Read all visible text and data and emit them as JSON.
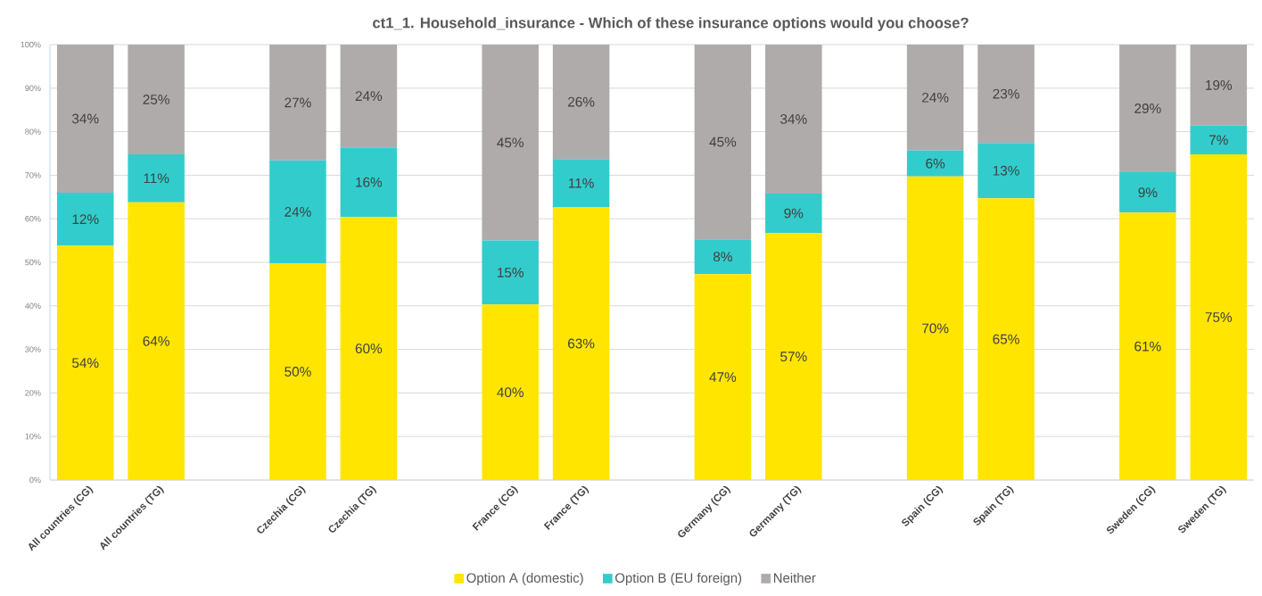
{
  "chart_data": {
    "type": "bar",
    "title": "ct1_1. Household_insurance - Which of these insurance options would you choose?",
    "categories": [
      "All countries (CG)",
      "All countries (TG)",
      null,
      "Czechia (CG)",
      "Czechia (TG)",
      null,
      "France (CG)",
      "France (TG)",
      null,
      "Germany (CG)",
      "Germany (TG)",
      null,
      "Spain (CG)",
      "Spain (TG)",
      null,
      "Sweden (CG)",
      "Sweden (TG)"
    ],
    "stacked": true,
    "series": [
      {
        "name": "Option A  (domestic)",
        "color": "#ffe500",
        "values": [
          53.8,
          63.8,
          null,
          49.8,
          60.4,
          null,
          40.3,
          62.7,
          null,
          47.3,
          56.7,
          null,
          69.7,
          64.7,
          null,
          61.4,
          74.8
        ],
        "value_labels": [
          "54%",
          "64%",
          null,
          "50%",
          "60%",
          null,
          "40%",
          "63%",
          null,
          "47%",
          "57%",
          null,
          "70%",
          "65%",
          null,
          "61%",
          "75%"
        ]
      },
      {
        "name": "Option B  (EU foreign)",
        "color": "#33cccc",
        "values": [
          12.2,
          11.0,
          null,
          23.6,
          16.0,
          null,
          14.7,
          11.0,
          null,
          8.0,
          9.1,
          null,
          6.0,
          12.7,
          null,
          9.3,
          6.6
        ],
        "value_labels": [
          "12%",
          "11%",
          null,
          "24%",
          "16%",
          null,
          "15%",
          "11%",
          null,
          "8%",
          "9%",
          null,
          "6%",
          "13%",
          null,
          "9%",
          "7%"
        ]
      },
      {
        "name": "Neither",
        "color": "#afabab",
        "values": [
          34.0,
          25.2,
          null,
          26.6,
          23.6,
          null,
          45.0,
          26.3,
          null,
          44.7,
          34.2,
          null,
          24.3,
          22.6,
          null,
          29.3,
          18.6
        ],
        "value_labels": [
          "34%",
          "25%",
          null,
          "27%",
          "24%",
          null,
          "45%",
          "26%",
          null,
          "45%",
          "34%",
          null,
          "24%",
          "23%",
          null,
          "29%",
          "19%"
        ]
      }
    ],
    "ylim": [
      0,
      100
    ],
    "yticks": [
      {
        "value": 0,
        "label": "0%"
      },
      {
        "value": 10,
        "label": "10%"
      },
      {
        "value": 20,
        "label": "20%"
      },
      {
        "value": 30,
        "label": "30%"
      },
      {
        "value": 40,
        "label": "40%"
      },
      {
        "value": 50,
        "label": "50%"
      },
      {
        "value": 60,
        "label": "60%"
      },
      {
        "value": 70,
        "label": "70%"
      },
      {
        "value": 80,
        "label": "80%"
      },
      {
        "value": 90,
        "label": "90%"
      },
      {
        "value": 100,
        "label": "100%"
      }
    ],
    "grid": "y",
    "legend": "bottom"
  }
}
